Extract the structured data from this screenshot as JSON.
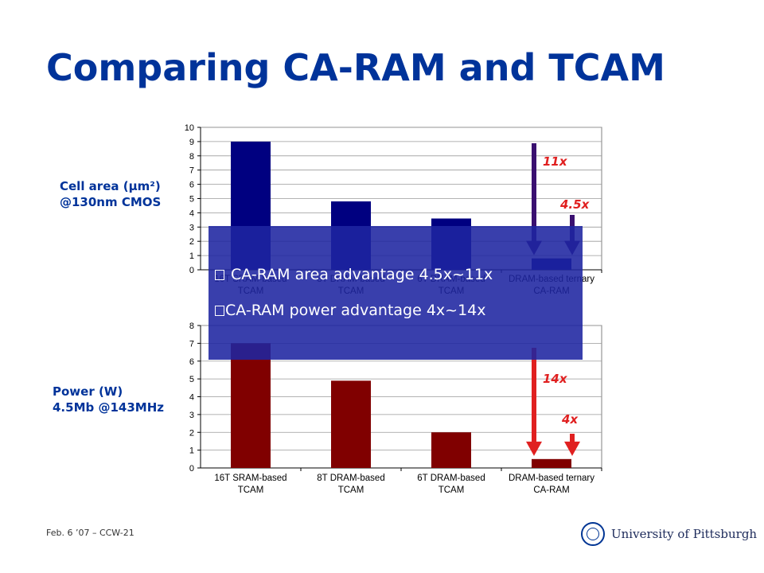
{
  "slide": {
    "title": "Comparing CA-RAM and TCAM",
    "footer": "Feb. 6 ’07 – CCW-21",
    "university": "University of Pittsburgh"
  },
  "labels": {
    "area_line1": "Cell area (µm²)",
    "area_line2": "@130nm CMOS",
    "power_line1": "Power (W)",
    "power_line2": "4.5Mb @143MHz"
  },
  "bullets": [
    "CA-RAM area advantage 4.5x~11x",
    "CA-RAM power advantage 4x~14x"
  ],
  "annotations": {
    "area_high": "11x",
    "area_low": "4.5x",
    "power_high": "14x",
    "power_low": "4x"
  },
  "colors": {
    "title": "#00339a",
    "area_bars": "#000080",
    "power_bars": "#800000",
    "annotation": "#e02020",
    "arrow_area": "#3a1070",
    "arrow_power": "#e02020",
    "overlay": "#1e24a0"
  },
  "chart_data": [
    {
      "type": "bar",
      "name": "area",
      "categories": [
        "16T SRAM-based TCAM",
        "8T DRAM-based TCAM",
        "6T DRAM-based TCAM",
        "DRAM-based ternary CA-RAM"
      ],
      "category_lines": [
        [
          "16T SRAM-based",
          "TCAM"
        ],
        [
          "8T DRAM-based",
          "TCAM"
        ],
        [
          "6T DRAM-based",
          "TCAM"
        ],
        [
          "DRAM-based ternary",
          "CA-RAM"
        ]
      ],
      "values": [
        9.0,
        4.8,
        3.6,
        0.8
      ],
      "ylim": [
        0,
        10
      ],
      "yticks": [
        0,
        1,
        2,
        3,
        4,
        5,
        6,
        7,
        8,
        9,
        10
      ],
      "grid": true
    },
    {
      "type": "bar",
      "name": "power",
      "categories": [
        "16T SRAM-based TCAM",
        "8T DRAM-based TCAM",
        "6T DRAM-based TCAM",
        "DRAM-based ternary CA-RAM"
      ],
      "category_lines": [
        [
          "16T SRAM-based",
          "TCAM"
        ],
        [
          "8T DRAM-based",
          "TCAM"
        ],
        [
          "6T DRAM-based",
          "TCAM"
        ],
        [
          "DRAM-based ternary",
          "CA-RAM"
        ]
      ],
      "values": [
        7.0,
        4.9,
        2.0,
        0.5
      ],
      "ylim": [
        0,
        8
      ],
      "yticks": [
        0,
        1,
        2,
        3,
        4,
        5,
        6,
        7,
        8
      ],
      "grid": true
    }
  ]
}
